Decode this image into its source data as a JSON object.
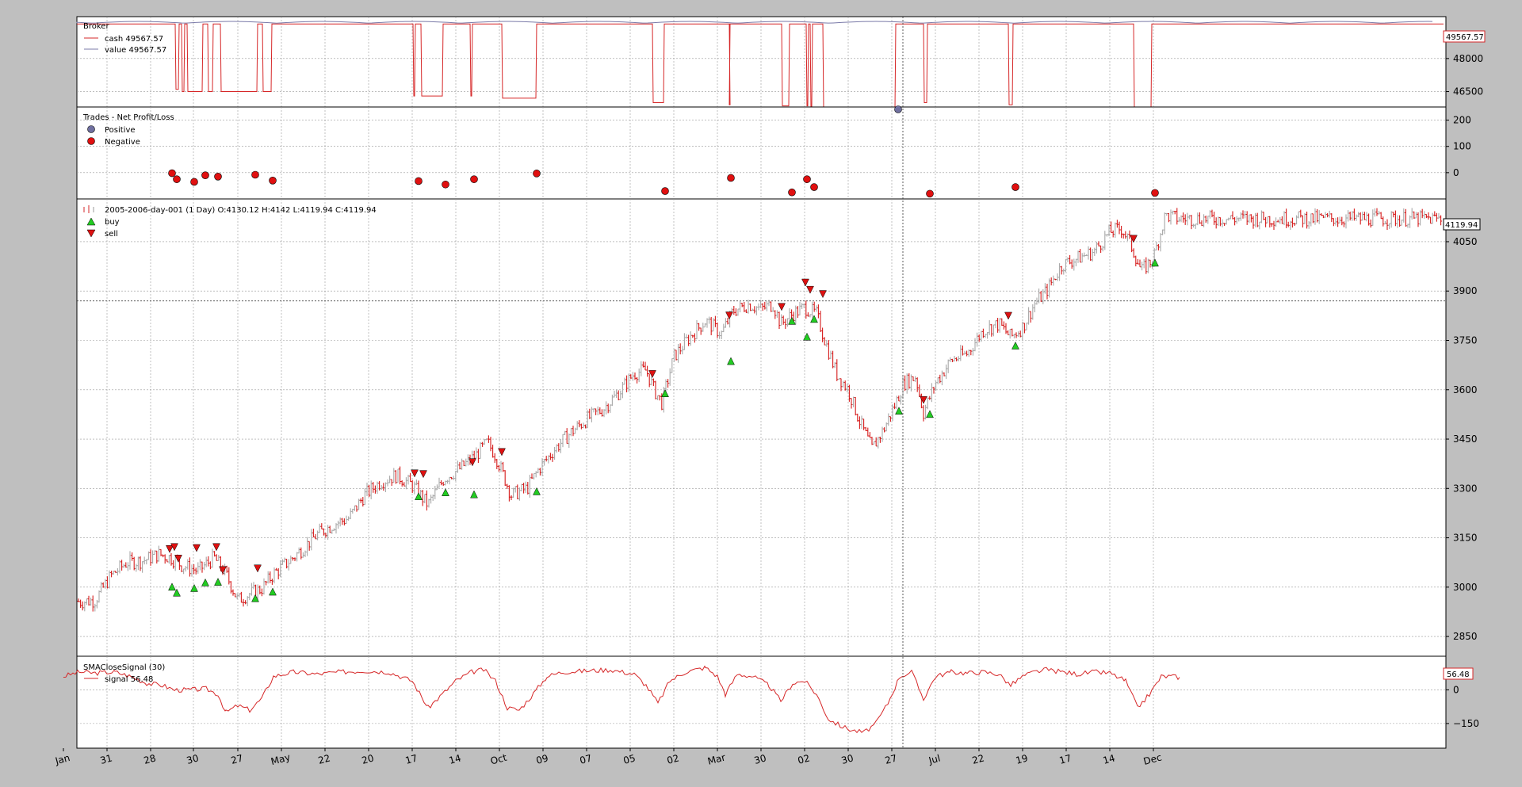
{
  "chart_data": [
    {
      "type": "line",
      "title": "Broker",
      "series": [
        {
          "name": "cash 49567.57",
          "color": "#d62728"
        },
        {
          "name": "value 49567.57",
          "color": "#7a7aa8"
        }
      ],
      "last_value_label": "49567.57",
      "yticks": [
        "48000",
        "46500"
      ],
      "ylim": [
        45800,
        49900
      ],
      "cash_drawdowns": [
        {
          "x": [
            221,
            226
          ],
          "y": 46600
        },
        {
          "x": [
            229,
            233
          ],
          "y": 46500
        },
        {
          "x": [
            236,
            256
          ],
          "y": 46500
        },
        {
          "x": [
            262,
            269
          ],
          "y": 46500
        },
        {
          "x": [
            278,
            325
          ],
          "y": 46500
        },
        {
          "x": [
            331,
            343
          ],
          "y": 46500
        },
        {
          "x": [
            521,
            524
          ],
          "y": 46300
        },
        {
          "x": [
            531,
            559
          ],
          "y": 46300
        },
        {
          "x": [
            593,
            596
          ],
          "y": 46300
        },
        {
          "x": [
            633,
            677
          ],
          "y": 46200
        },
        {
          "x": [
            823,
            838
          ],
          "y": 46000
        },
        {
          "x": [
            920,
            921
          ],
          "y": 45900
        },
        {
          "x": [
            986,
            996
          ],
          "y": 45850
        },
        {
          "x": [
            1017,
            1020
          ],
          "y": 45850
        },
        {
          "x": [
            1022,
            1025
          ],
          "y": 45750
        },
        {
          "x": [
            1038,
            1130
          ],
          "y": 45700
        },
        {
          "x": [
            1165,
            1170
          ],
          "y": 46000
        },
        {
          "x": [
            1272,
            1278
          ],
          "y": 45900
        },
        {
          "x": [
            1430,
            1453
          ],
          "y": 45700
        }
      ]
    },
    {
      "type": "scatter",
      "title": "Trades - Net Profit/Loss",
      "legend": [
        "Positive",
        "Negative"
      ],
      "colors": {
        "positive": "#7070a0",
        "negative": "#e01010"
      },
      "yticks": [
        200,
        100,
        0
      ],
      "ylim": [
        -100,
        250
      ],
      "positive": [
        {
          "x": 1133,
          "y": 235
        }
      ],
      "negative": [
        {
          "x": 217,
          "y": -2
        },
        {
          "x": 223,
          "y": -25
        },
        {
          "x": 245,
          "y": -35
        },
        {
          "x": 259,
          "y": -10
        },
        {
          "x": 275,
          "y": -15
        },
        {
          "x": 322,
          "y": -8
        },
        {
          "x": 344,
          "y": -30
        },
        {
          "x": 528,
          "y": -32
        },
        {
          "x": 562,
          "y": -45
        },
        {
          "x": 598,
          "y": -25
        },
        {
          "x": 677,
          "y": -3
        },
        {
          "x": 839,
          "y": -70
        },
        {
          "x": 922,
          "y": -20
        },
        {
          "x": 999,
          "y": -75
        },
        {
          "x": 1018,
          "y": -25
        },
        {
          "x": 1027,
          "y": -55
        },
        {
          "x": 1173,
          "y": -80
        },
        {
          "x": 1281,
          "y": -55
        },
        {
          "x": 1457,
          "y": -77
        }
      ]
    },
    {
      "type": "candlestick",
      "title": "2005-2006-day-001 (1 Day) O:4130.12 H:4142 L:4119.94 C:4119.94",
      "legend": [
        "buy",
        "sell"
      ],
      "last_value_label": "4119.94",
      "yticks": [
        4050,
        3900,
        3750,
        3600,
        3450,
        3300,
        3150,
        3000,
        2850
      ],
      "ylim": [
        2790,
        4180
      ],
      "hline": 3870,
      "close_path": [
        [
          80,
          2980
        ],
        [
          100,
          2955
        ],
        [
          120,
          2960
        ],
        [
          140,
          3035
        ],
        [
          160,
          3075
        ],
        [
          180,
          3080
        ],
        [
          200,
          3100
        ],
        [
          215,
          3090
        ],
        [
          230,
          3065
        ],
        [
          250,
          3050
        ],
        [
          270,
          3090
        ],
        [
          285,
          3040
        ],
        [
          300,
          2960
        ],
        [
          315,
          2980
        ],
        [
          330,
          2995
        ],
        [
          345,
          3040
        ],
        [
          370,
          3090
        ],
        [
          400,
          3160
        ],
        [
          420,
          3190
        ],
        [
          440,
          3210
        ],
        [
          460,
          3280
        ],
        [
          480,
          3320
        ],
        [
          500,
          3340
        ],
        [
          520,
          3310
        ],
        [
          540,
          3250
        ],
        [
          560,
          3330
        ],
        [
          580,
          3360
        ],
        [
          600,
          3400
        ],
        [
          615,
          3440
        ],
        [
          625,
          3400
        ],
        [
          645,
          3280
        ],
        [
          665,
          3300
        ],
        [
          680,
          3360
        ],
        [
          700,
          3420
        ],
        [
          720,
          3470
        ],
        [
          740,
          3510
        ],
        [
          760,
          3540
        ],
        [
          780,
          3590
        ],
        [
          800,
          3650
        ],
        [
          815,
          3660
        ],
        [
          825,
          3600
        ],
        [
          835,
          3560
        ],
        [
          850,
          3700
        ],
        [
          870,
          3760
        ],
        [
          890,
          3810
        ],
        [
          910,
          3770
        ],
        [
          925,
          3840
        ],
        [
          945,
          3860
        ],
        [
          960,
          3845
        ],
        [
          975,
          3860
        ],
        [
          985,
          3800
        ],
        [
          1000,
          3830
        ],
        [
          1015,
          3850
        ],
        [
          1030,
          3830
        ],
        [
          1042,
          3740
        ],
        [
          1055,
          3650
        ],
        [
          1070,
          3600
        ],
        [
          1085,
          3500
        ],
        [
          1100,
          3420
        ],
        [
          1115,
          3480
        ],
        [
          1130,
          3560
        ],
        [
          1140,
          3620
        ],
        [
          1155,
          3640
        ],
        [
          1165,
          3530
        ],
        [
          1180,
          3620
        ],
        [
          1200,
          3690
        ],
        [
          1220,
          3710
        ],
        [
          1240,
          3780
        ],
        [
          1260,
          3800
        ],
        [
          1275,
          3760
        ],
        [
          1290,
          3790
        ],
        [
          1305,
          3860
        ],
        [
          1320,
          3900
        ],
        [
          1340,
          3980
        ],
        [
          1360,
          4000
        ],
        [
          1380,
          4020
        ],
        [
          1400,
          4080
        ],
        [
          1415,
          4090
        ],
        [
          1425,
          4050
        ],
        [
          1440,
          3960
        ],
        [
          1455,
          4000
        ],
        [
          1470,
          4130
        ],
        [
          1488,
          4120
        ]
      ],
      "buy": [
        {
          "x": 217,
          "y": 3000
        },
        {
          "x": 223,
          "y": 2982
        },
        {
          "x": 245,
          "y": 2996
        },
        {
          "x": 259,
          "y": 3013
        },
        {
          "x": 275,
          "y": 3015
        },
        {
          "x": 322,
          "y": 2965
        },
        {
          "x": 344,
          "y": 2985
        },
        {
          "x": 528,
          "y": 3275
        },
        {
          "x": 562,
          "y": 3287
        },
        {
          "x": 598,
          "y": 3281
        },
        {
          "x": 677,
          "y": 3290
        },
        {
          "x": 839,
          "y": 3588
        },
        {
          "x": 922,
          "y": 3686
        },
        {
          "x": 999,
          "y": 3808
        },
        {
          "x": 1018,
          "y": 3760
        },
        {
          "x": 1027,
          "y": 3814
        },
        {
          "x": 1134,
          "y": 3535
        },
        {
          "x": 1173,
          "y": 3525
        },
        {
          "x": 1281,
          "y": 3733
        },
        {
          "x": 1457,
          "y": 3985
        }
      ],
      "sell": [
        {
          "x": 214,
          "y": 3117
        },
        {
          "x": 220,
          "y": 3123
        },
        {
          "x": 225,
          "y": 3088
        },
        {
          "x": 248,
          "y": 3120
        },
        {
          "x": 273,
          "y": 3123
        },
        {
          "x": 281,
          "y": 3053
        },
        {
          "x": 325,
          "y": 3058
        },
        {
          "x": 523,
          "y": 3347
        },
        {
          "x": 534,
          "y": 3345
        },
        {
          "x": 596,
          "y": 3381
        },
        {
          "x": 633,
          "y": 3412
        },
        {
          "x": 823,
          "y": 3649
        },
        {
          "x": 920,
          "y": 3827
        },
        {
          "x": 986,
          "y": 3853
        },
        {
          "x": 1016,
          "y": 3927
        },
        {
          "x": 1022,
          "y": 3905
        },
        {
          "x": 1038,
          "y": 3892
        },
        {
          "x": 1165,
          "y": 3570
        },
        {
          "x": 1272,
          "y": 3826
        },
        {
          "x": 1430,
          "y": 4060
        }
      ]
    },
    {
      "type": "line",
      "title": "SMACloseSignal (30)",
      "series": [
        {
          "name": "signal 56.48",
          "color": "#d62728"
        }
      ],
      "last_value_label": "56.48",
      "yticks": [
        "0",
        "−150"
      ],
      "ylim": [
        -260,
        150
      ],
      "path": [
        [
          80,
          60
        ],
        [
          100,
          80
        ],
        [
          120,
          75
        ],
        [
          145,
          80
        ],
        [
          165,
          60
        ],
        [
          185,
          30
        ],
        [
          205,
          20
        ],
        [
          220,
          0
        ],
        [
          240,
          0
        ],
        [
          260,
          5
        ],
        [
          275,
          -20
        ],
        [
          285,
          -100
        ],
        [
          300,
          -70
        ],
        [
          315,
          -90
        ],
        [
          330,
          -40
        ],
        [
          345,
          60
        ],
        [
          370,
          80
        ],
        [
          400,
          70
        ],
        [
          430,
          80
        ],
        [
          460,
          85
        ],
        [
          490,
          80
        ],
        [
          520,
          40
        ],
        [
          540,
          -80
        ],
        [
          555,
          -30
        ],
        [
          575,
          40
        ],
        [
          595,
          80
        ],
        [
          610,
          90
        ],
        [
          625,
          40
        ],
        [
          640,
          -80
        ],
        [
          655,
          -90
        ],
        [
          670,
          -30
        ],
        [
          690,
          60
        ],
        [
          710,
          80
        ],
        [
          740,
          85
        ],
        [
          770,
          90
        ],
        [
          800,
          70
        ],
        [
          815,
          20
        ],
        [
          830,
          -60
        ],
        [
          845,
          40
        ],
        [
          865,
          80
        ],
        [
          890,
          100
        ],
        [
          905,
          60
        ],
        [
          915,
          -20
        ],
        [
          930,
          70
        ],
        [
          950,
          60
        ],
        [
          970,
          20
        ],
        [
          985,
          -50
        ],
        [
          1000,
          30
        ],
        [
          1015,
          40
        ],
        [
          1030,
          -20
        ],
        [
          1045,
          -130
        ],
        [
          1060,
          -160
        ],
        [
          1075,
          -180
        ],
        [
          1090,
          -190
        ],
        [
          1105,
          -150
        ],
        [
          1120,
          -60
        ],
        [
          1135,
          60
        ],
        [
          1150,
          80
        ],
        [
          1165,
          -40
        ],
        [
          1180,
          60
        ],
        [
          1200,
          80
        ],
        [
          1220,
          75
        ],
        [
          1240,
          80
        ],
        [
          1260,
          70
        ],
        [
          1275,
          20
        ],
        [
          1290,
          60
        ],
        [
          1305,
          80
        ],
        [
          1320,
          90
        ],
        [
          1340,
          80
        ],
        [
          1360,
          70
        ],
        [
          1380,
          80
        ],
        [
          1400,
          75
        ],
        [
          1420,
          40
        ],
        [
          1435,
          -80
        ],
        [
          1450,
          -20
        ],
        [
          1465,
          60
        ],
        [
          1480,
          60
        ],
        [
          1488,
          56
        ]
      ]
    }
  ],
  "x_axis": {
    "tick_labels": [
      "Jan",
      "31",
      "28",
      "30",
      "27",
      "May",
      "22",
      "20",
      "17",
      "14",
      "Oct",
      "09",
      "07",
      "05",
      "02",
      "Mar",
      "30",
      "02",
      "30",
      "27",
      "Jul",
      "22",
      "19",
      "17",
      "14",
      "Dec"
    ],
    "tick_x": [
      80,
      135,
      190,
      244,
      300,
      355,
      410,
      465,
      520,
      575,
      630,
      685,
      740,
      795,
      850,
      905,
      960,
      1015,
      1070,
      1125,
      1180,
      1235,
      1290,
      1345,
      1400,
      1455
    ],
    "cursor_x": 1139
  }
}
